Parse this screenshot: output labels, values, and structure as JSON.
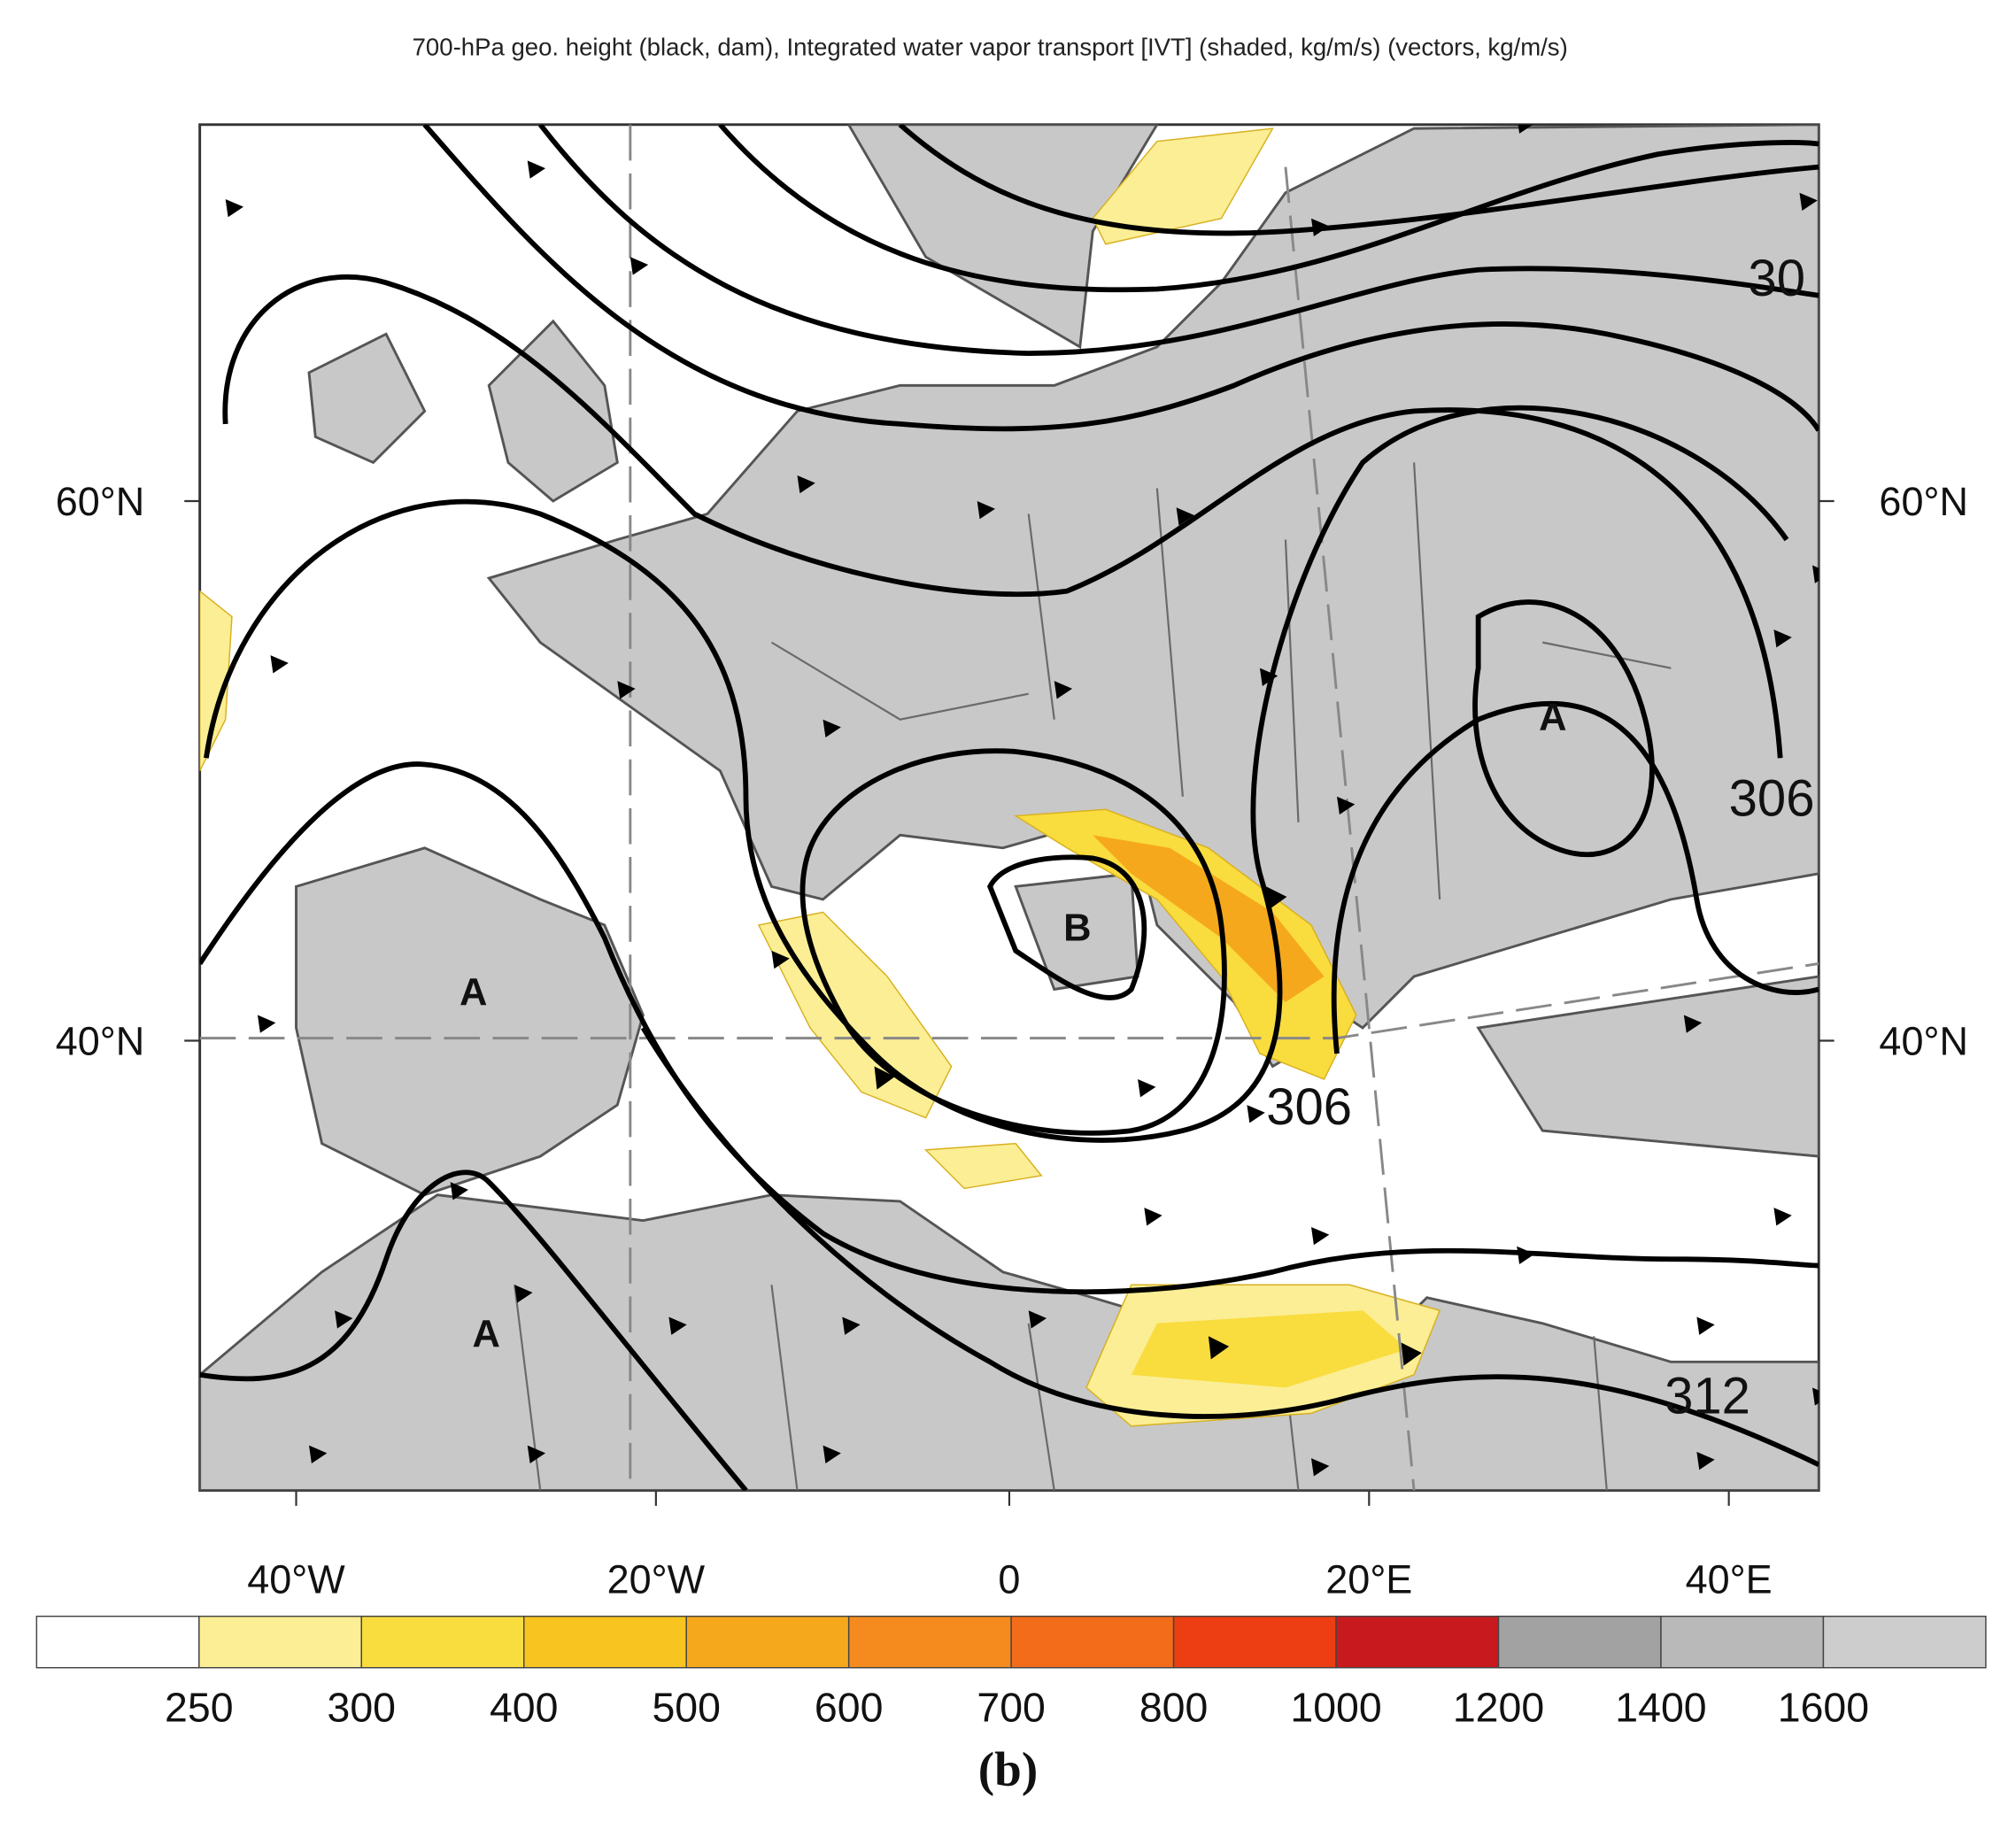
{
  "title": "700-hPa geo. height (black, dam), Integrated water vapor transport [IVT] (shaded, kg/m/s) (vectors, kg/m/s)",
  "lat_labels": {
    "left": [
      "60°N",
      "40°N"
    ],
    "right": [
      "60°N",
      "40°N"
    ]
  },
  "lon_labels": [
    "40°W",
    "20°W",
    "0",
    "20°E",
    "40°E"
  ],
  "contour_labels": [
    "30",
    "306",
    "306",
    "312"
  ],
  "pressure_centers": [
    "A",
    "B",
    "A",
    "A"
  ],
  "colorbar": {
    "ticks": [
      250,
      300,
      400,
      500,
      600,
      700,
      800,
      1000,
      1200,
      1400,
      1600
    ],
    "colors": [
      "#ffffff",
      "#fbee94",
      "#f9dc3e",
      "#f7c420",
      "#f6a81c",
      "#f58a1e",
      "#f26c1a",
      "#ec3e12",
      "#c81a1e",
      "#a2a2a2",
      "#b9b9b9",
      "#cdcdcd"
    ]
  },
  "caption": "(b)"
}
